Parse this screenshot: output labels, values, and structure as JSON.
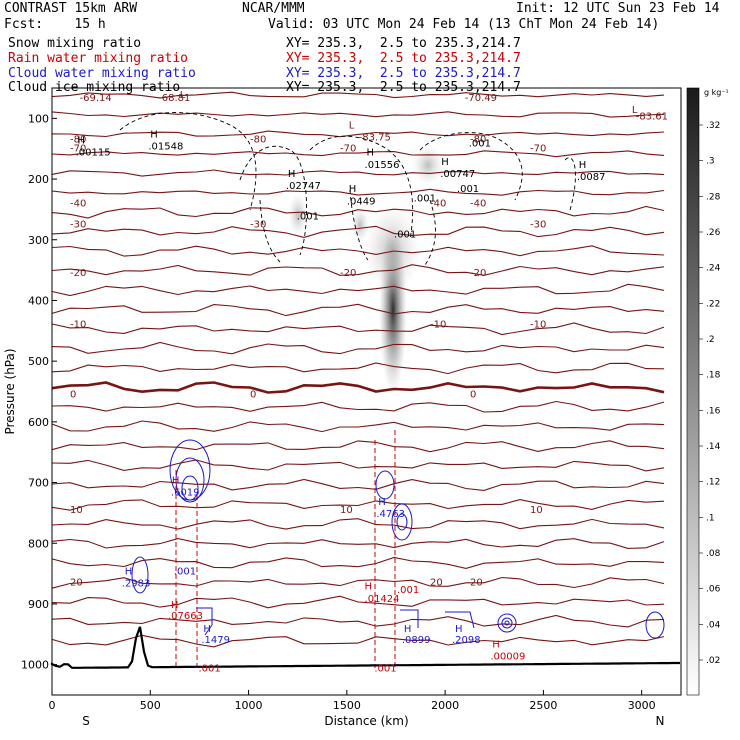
{
  "header": {
    "title": "CONTRAST 15km ARW",
    "fcst": "Fcst:    15 h",
    "center": "NCAR/MMM",
    "init": "Init: 12 UTC Sun 23 Feb 14",
    "valid": "Valid: 03 UTC Mon 24 Feb 14 (13 ChT Mon 24 Feb 14)"
  },
  "legend": [
    {
      "name": "Snow mixing ratio",
      "xy": "XY= 235.3,  2.5 to 235.3,214.7",
      "color": "#000000"
    },
    {
      "name": "Rain water mixing ratio",
      "xy": "XY= 235.3,  2.5 to 235.3,214.7",
      "color": "#d00000"
    },
    {
      "name": "Cloud water mixing ratio",
      "xy": "XY= 235.3,  2.5 to 235.3,214.7",
      "color": "#1a1ad0"
    },
    {
      "name": "Cloud ice mixing ratio",
      "xy": "XY= 235.3,  2.5 to 235.3,214.7",
      "color": "#000000"
    }
  ],
  "colorbar": {
    "unit": "g kg⁻¹",
    "labels": [
      ".32",
      ".3",
      ".28",
      ".26",
      ".24",
      ".22",
      ".2",
      ".18",
      ".16",
      ".14",
      ".12",
      ".1",
      ".08",
      ".06",
      ".04",
      ".02"
    ]
  },
  "chart_data": {
    "type": "heatmap",
    "title": "",
    "xlabel": "Distance (km)",
    "ylabel": "Pressure (hPa)",
    "xlim": [
      0,
      3200
    ],
    "ylim": [
      1050,
      50
    ],
    "xticks": [
      0,
      500,
      1000,
      1500,
      2000,
      2500,
      3000
    ],
    "yticks": [
      100,
      200,
      300,
      400,
      500,
      600,
      700,
      800,
      900,
      1000
    ],
    "x_end_labels": {
      "left": "S",
      "right": "N"
    },
    "temperature_isotherms": [
      {
        "label": "-80",
        "p": 135
      },
      {
        "label": "-70",
        "p": 150
      },
      {
        "label": "-40",
        "p": 240
      },
      {
        "label": "-30",
        "p": 275
      },
      {
        "label": "-20",
        "p": 355
      },
      {
        "label": "-10",
        "p": 440
      },
      {
        "label": "0",
        "p": 555
      },
      {
        "label": "10",
        "p": 745
      },
      {
        "label": "20",
        "p": 865
      }
    ],
    "text_annotations": [
      {
        "text": "-69.14",
        "x": 140,
        "p": 65
      },
      {
        "text": "-68.81",
        "x": 540,
        "p": 65
      },
      {
        "text": "-70.49",
        "x": 2100,
        "p": 65
      },
      {
        "text": "-83.61",
        "x": 2970,
        "p": 95
      },
      {
        "text": "-83.75",
        "x": 1560,
        "p": 130
      },
      {
        "text": "L",
        "x": 1510,
        "p": 110
      },
      {
        "text": "L",
        "x": 2950,
        "p": 85
      },
      {
        "text": "L",
        "x": 650,
        "p": 60
      },
      {
        "text": "H",
        "x": 130,
        "p": 135
      },
      {
        "text": ".00115",
        "x": 120,
        "p": 155
      },
      {
        "text": "H",
        "x": 500,
        "p": 125
      },
      {
        "text": ".01548",
        "x": 490,
        "p": 145
      },
      {
        "text": "H",
        "x": 1600,
        "p": 155
      },
      {
        "text": ".01556",
        "x": 1590,
        "p": 175
      },
      {
        "text": "H",
        "x": 1980,
        "p": 170
      },
      {
        "text": ".00747",
        "x": 1975,
        "p": 190
      },
      {
        "text": "H",
        "x": 2680,
        "p": 175
      },
      {
        "text": ".0087",
        "x": 2670,
        "p": 195
      },
      {
        "text": "H",
        "x": 1200,
        "p": 190
      },
      {
        "text": ".02747",
        "x": 1190,
        "p": 210
      },
      {
        "text": "H",
        "x": 1510,
        "p": 215
      },
      {
        "text": ".0449",
        "x": 1500,
        "p": 235
      },
      {
        "text": ".001",
        "x": 1245,
        "p": 260
      },
      {
        "text": ".001",
        "x": 1840,
        "p": 230
      },
      {
        "text": ".001",
        "x": 2060,
        "p": 215
      },
      {
        "text": ".001",
        "x": 1740,
        "p": 290
      },
      {
        "text": ".001",
        "x": 2120,
        "p": 140
      },
      {
        "text": "H",
        "x": 610,
        "p": 695
      },
      {
        "text": ".6019",
        "x": 605,
        "p": 715
      },
      {
        "text": "H",
        "x": 1660,
        "p": 730
      },
      {
        "text": ".4763",
        "x": 1650,
        "p": 750
      },
      {
        "text": "H",
        "x": 370,
        "p": 845
      },
      {
        "text": ".2983",
        "x": 355,
        "p": 865
      },
      {
        "text": ".001",
        "x": 620,
        "p": 845
      },
      {
        "text": ".001",
        "x": 1755,
        "p": 875
      },
      {
        "text": "H",
        "x": 1590,
        "p": 870
      },
      {
        "text": ".01424",
        "x": 1590,
        "p": 890
      },
      {
        "text": "H",
        "x": 605,
        "p": 900
      },
      {
        "text": ".07663",
        "x": 590,
        "p": 918
      },
      {
        "text": "H",
        "x": 770,
        "p": 940
      },
      {
        "text": ".1479",
        "x": 760,
        "p": 958
      },
      {
        "text": "H",
        "x": 1790,
        "p": 940
      },
      {
        "text": ".0899",
        "x": 1780,
        "p": 958
      },
      {
        "text": "H",
        "x": 2050,
        "p": 940
      },
      {
        "text": ".2098",
        "x": 2035,
        "p": 958
      },
      {
        "text": "H",
        "x": 2240,
        "p": 965
      },
      {
        "text": ".00009",
        "x": 2230,
        "p": 985
      },
      {
        "text": ".001",
        "x": 745,
        "p": 1005
      },
      {
        "text": ".001",
        "x": 1640,
        "p": 1005
      }
    ]
  }
}
